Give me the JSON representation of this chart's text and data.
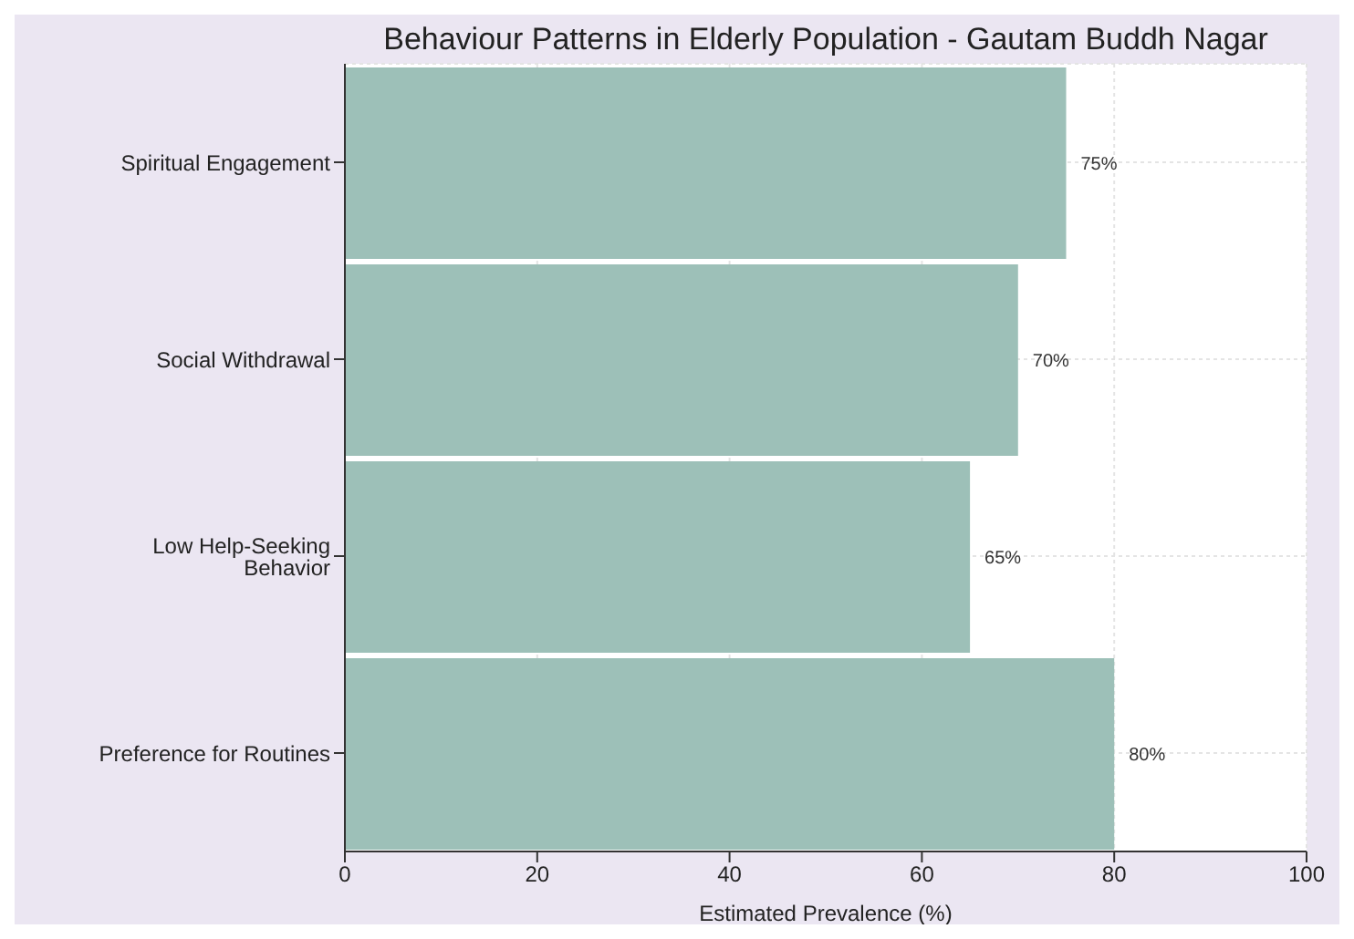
{
  "chart_data": {
    "type": "bar",
    "orientation": "horizontal",
    "title": "Behaviour Patterns in Elderly Population - Gautam Buddh Nagar",
    "xlabel": "Estimated Prevalence (%)",
    "categories": [
      "Spiritual Engagement",
      "Social Withdrawal",
      "Low Help-Seeking Behavior",
      "Preference for Routines"
    ],
    "values": [
      75,
      70,
      65,
      80
    ],
    "value_labels": [
      "75%",
      "70%",
      "65%",
      "80%"
    ],
    "color": "#9dc0b8",
    "xlim": [
      0,
      100
    ],
    "xticks": [
      0,
      20,
      40,
      60,
      80,
      100
    ],
    "grid": true
  }
}
